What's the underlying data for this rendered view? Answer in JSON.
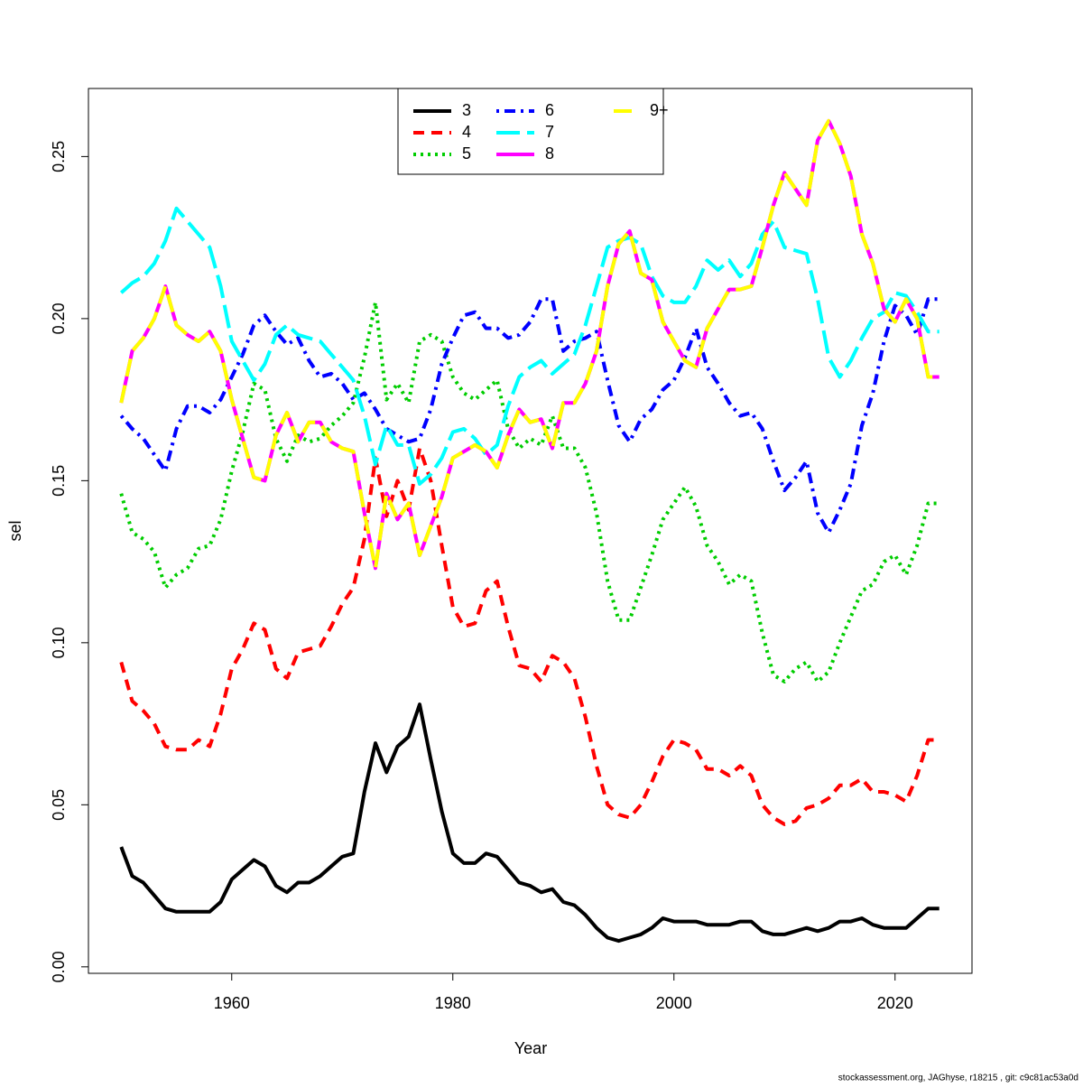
{
  "chart_data": {
    "type": "line",
    "xlabel": "Year",
    "ylabel": "sel",
    "footnote": "stockassessment.org, JAGhyse, r18215 , git: c9c81ac53a0d",
    "x": [
      1950,
      1951,
      1952,
      1953,
      1954,
      1955,
      1956,
      1957,
      1958,
      1959,
      1960,
      1961,
      1962,
      1963,
      1964,
      1965,
      1966,
      1967,
      1968,
      1969,
      1970,
      1971,
      1972,
      1973,
      1974,
      1975,
      1976,
      1977,
      1978,
      1979,
      1980,
      1981,
      1982,
      1983,
      1984,
      1985,
      1986,
      1987,
      1988,
      1989,
      1990,
      1991,
      1992,
      1993,
      1994,
      1995,
      1996,
      1997,
      1998,
      1999,
      2000,
      2001,
      2002,
      2003,
      2004,
      2005,
      2006,
      2007,
      2008,
      2009,
      2010,
      2011,
      2012,
      2013,
      2014,
      2015,
      2016,
      2017,
      2018,
      2019,
      2020,
      2021,
      2022,
      2023,
      2024
    ],
    "xlim": [
      1947.04,
      2026.96
    ],
    "xticks": [
      1960,
      1980,
      2000,
      2020
    ],
    "ylim": [
      -0.002,
      0.271
    ],
    "yticks": [
      {
        "value": 0,
        "label": "0.00"
      },
      0.05,
      {
        "value": 0.1,
        "label": "0.10"
      },
      0.15,
      {
        "value": 0.2,
        "label": "0.20"
      },
      0.25
    ],
    "series": [
      {
        "name": "3",
        "color": "#000000",
        "linestyle": "solid",
        "values": [
          0.037,
          0.028,
          0.026,
          0.022,
          0.018,
          0.017,
          0.017,
          0.017,
          0.017,
          0.02,
          0.027,
          0.03,
          0.033,
          0.031,
          0.025,
          0.023,
          0.026,
          0.026,
          0.028,
          0.031,
          0.034,
          0.035,
          0.054,
          0.069,
          0.06,
          0.068,
          0.071,
          0.081,
          0.064,
          0.048,
          0.035,
          0.032,
          0.032,
          0.035,
          0.034,
          0.03,
          0.026,
          0.025,
          0.023,
          0.024,
          0.02,
          0.019,
          0.016,
          0.012,
          0.009,
          0.008,
          0.009,
          0.01,
          0.012,
          0.015,
          0.014,
          0.014,
          0.014,
          0.013,
          0.013,
          0.013,
          0.014,
          0.014,
          0.011,
          0.01,
          0.01,
          0.011,
          0.012,
          0.011,
          0.012,
          0.014,
          0.014,
          0.015,
          0.013,
          0.012,
          0.012,
          0.012,
          0.015,
          0.018,
          0.018
        ]
      },
      {
        "name": "4",
        "color": "#ff0000",
        "linestyle": "dashed",
        "values": [
          0.094,
          0.082,
          0.079,
          0.075,
          0.068,
          0.067,
          0.067,
          0.07,
          0.068,
          0.078,
          0.092,
          0.098,
          0.106,
          0.104,
          0.092,
          0.089,
          0.097,
          0.098,
          0.099,
          0.105,
          0.112,
          0.117,
          0.132,
          0.157,
          0.139,
          0.15,
          0.141,
          0.16,
          0.15,
          0.13,
          0.111,
          0.105,
          0.106,
          0.116,
          0.119,
          0.105,
          0.093,
          0.092,
          0.088,
          0.096,
          0.094,
          0.089,
          0.077,
          0.062,
          0.05,
          0.047,
          0.046,
          0.05,
          0.057,
          0.065,
          0.07,
          0.069,
          0.067,
          0.061,
          0.061,
          0.059,
          0.062,
          0.059,
          0.05,
          0.046,
          0.044,
          0.045,
          0.049,
          0.05,
          0.052,
          0.056,
          0.056,
          0.058,
          0.054,
          0.054,
          0.053,
          0.051,
          0.059,
          0.07,
          0.07
        ]
      },
      {
        "name": "5",
        "color": "#00cd00",
        "linestyle": "dotted",
        "values": [
          0.146,
          0.134,
          0.132,
          0.128,
          0.117,
          0.121,
          0.123,
          0.129,
          0.13,
          0.138,
          0.153,
          0.165,
          0.18,
          0.178,
          0.163,
          0.156,
          0.164,
          0.162,
          0.163,
          0.167,
          0.17,
          0.174,
          0.188,
          0.205,
          0.175,
          0.18,
          0.174,
          0.193,
          0.195,
          0.193,
          0.182,
          0.177,
          0.175,
          0.178,
          0.181,
          0.166,
          0.16,
          0.163,
          0.161,
          0.17,
          0.16,
          0.16,
          0.154,
          0.14,
          0.119,
          0.107,
          0.107,
          0.117,
          0.127,
          0.138,
          0.143,
          0.148,
          0.142,
          0.13,
          0.125,
          0.118,
          0.121,
          0.119,
          0.103,
          0.09,
          0.088,
          0.092,
          0.094,
          0.088,
          0.091,
          0.1,
          0.108,
          0.116,
          0.118,
          0.125,
          0.127,
          0.121,
          0.13,
          0.143,
          0.143
        ]
      },
      {
        "name": "6",
        "color": "#0000ff",
        "linestyle": "dotdash",
        "values": [
          0.17,
          0.166,
          0.163,
          0.158,
          0.153,
          0.166,
          0.173,
          0.173,
          0.171,
          0.175,
          0.182,
          0.189,
          0.198,
          0.201,
          0.196,
          0.192,
          0.194,
          0.187,
          0.182,
          0.183,
          0.18,
          0.175,
          0.177,
          0.172,
          0.166,
          0.164,
          0.162,
          0.163,
          0.172,
          0.186,
          0.194,
          0.201,
          0.202,
          0.197,
          0.197,
          0.194,
          0.195,
          0.199,
          0.206,
          0.206,
          0.19,
          0.193,
          0.194,
          0.196,
          0.181,
          0.167,
          0.162,
          0.169,
          0.172,
          0.178,
          0.181,
          0.188,
          0.197,
          0.185,
          0.18,
          0.174,
          0.17,
          0.171,
          0.166,
          0.156,
          0.147,
          0.151,
          0.156,
          0.14,
          0.134,
          0.141,
          0.149,
          0.167,
          0.177,
          0.193,
          0.204,
          0.201,
          0.195,
          0.206,
          0.206
        ]
      },
      {
        "name": "7",
        "color": "#00ffff",
        "linestyle": "longdash",
        "values": [
          0.208,
          0.211,
          0.213,
          0.217,
          0.224,
          0.234,
          0.23,
          0.226,
          0.222,
          0.21,
          0.193,
          0.187,
          0.181,
          0.186,
          0.195,
          0.198,
          0.195,
          0.194,
          0.193,
          0.189,
          0.185,
          0.181,
          0.17,
          0.155,
          0.167,
          0.161,
          0.161,
          0.149,
          0.152,
          0.157,
          0.165,
          0.166,
          0.163,
          0.158,
          0.161,
          0.173,
          0.182,
          0.185,
          0.187,
          0.183,
          0.186,
          0.189,
          0.198,
          0.21,
          0.222,
          0.224,
          0.225,
          0.223,
          0.213,
          0.207,
          0.205,
          0.205,
          0.21,
          0.218,
          0.215,
          0.218,
          0.213,
          0.217,
          0.226,
          0.23,
          0.222,
          0.221,
          0.22,
          0.206,
          0.188,
          0.182,
          0.187,
          0.194,
          0.2,
          0.202,
          0.208,
          0.207,
          0.202,
          0.196,
          0.196
        ]
      },
      {
        "name": "8",
        "color": "#ff00ff",
        "linestyle": "solid",
        "values": [
          0.174,
          0.19,
          0.194,
          0.2,
          0.21,
          0.198,
          0.195,
          0.193,
          0.196,
          0.19,
          0.175,
          0.163,
          0.151,
          0.15,
          0.164,
          0.171,
          0.162,
          0.168,
          0.168,
          0.162,
          0.16,
          0.159,
          0.14,
          0.123,
          0.146,
          0.138,
          0.143,
          0.127,
          0.136,
          0.145,
          0.157,
          0.159,
          0.161,
          0.159,
          0.154,
          0.164,
          0.172,
          0.168,
          0.169,
          0.16,
          0.174,
          0.174,
          0.18,
          0.19,
          0.21,
          0.223,
          0.227,
          0.214,
          0.212,
          0.199,
          0.193,
          0.187,
          0.185,
          0.197,
          0.203,
          0.209,
          0.209,
          0.21,
          0.222,
          0.235,
          0.245,
          0.24,
          0.235,
          0.255,
          0.261,
          0.254,
          0.244,
          0.226,
          0.217,
          0.203,
          0.199,
          0.206,
          0.2,
          0.182,
          0.182
        ]
      },
      {
        "name": "9+",
        "color": "#ffff00",
        "linestyle": "dashed",
        "values": [
          0.174,
          0.19,
          0.194,
          0.2,
          0.21,
          0.198,
          0.195,
          0.193,
          0.196,
          0.19,
          0.175,
          0.163,
          0.151,
          0.15,
          0.164,
          0.171,
          0.162,
          0.168,
          0.168,
          0.162,
          0.16,
          0.159,
          0.14,
          0.123,
          0.146,
          0.138,
          0.143,
          0.127,
          0.136,
          0.145,
          0.157,
          0.159,
          0.161,
          0.159,
          0.154,
          0.164,
          0.172,
          0.168,
          0.169,
          0.16,
          0.174,
          0.174,
          0.18,
          0.19,
          0.21,
          0.223,
          0.227,
          0.214,
          0.212,
          0.199,
          0.193,
          0.187,
          0.185,
          0.197,
          0.203,
          0.209,
          0.209,
          0.21,
          0.222,
          0.235,
          0.245,
          0.24,
          0.235,
          0.255,
          0.261,
          0.254,
          0.244,
          0.226,
          0.217,
          0.203,
          0.199,
          0.206,
          0.2,
          0.182,
          0.182
        ]
      }
    ],
    "legend": "top-center"
  }
}
